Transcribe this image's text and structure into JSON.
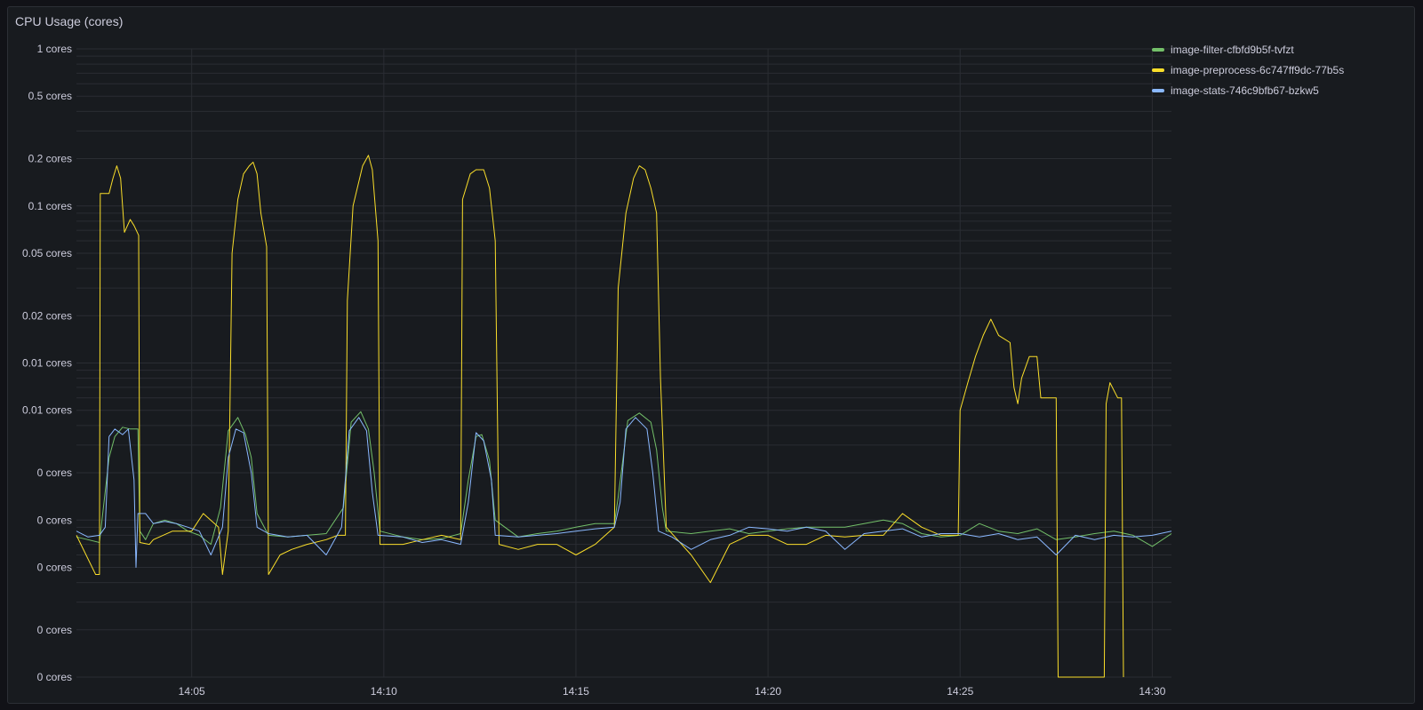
{
  "panel": {
    "title": "CPU Usage (cores)"
  },
  "chart_data": {
    "type": "line",
    "title": "CPU Usage (cores)",
    "y_scale": "log",
    "grid": true,
    "legend_position": "right",
    "y_tick_labels": [
      {
        "value": 1,
        "label": "1 cores"
      },
      {
        "value": 0.5,
        "label": "0.5 cores"
      },
      {
        "value": 0.2,
        "label": "0.2 cores"
      },
      {
        "value": 0.1,
        "label": "0.1 cores"
      },
      {
        "value": 0.05,
        "label": "0.05 cores"
      },
      {
        "value": 0.02,
        "label": "0.02 cores"
      },
      {
        "value": 0.01,
        "label": "0.01 cores"
      },
      {
        "value": 0.005,
        "label": "0.01 cores"
      },
      {
        "value": 0.002,
        "label": "0 cores"
      },
      {
        "value": 0.001,
        "label": "0 cores"
      },
      {
        "value": 0.0005,
        "label": "0 cores"
      },
      {
        "value": 0.0002,
        "label": "0 cores"
      },
      {
        "value": 0.0001,
        "label": "0 cores"
      }
    ],
    "x_tick_labels": [
      {
        "minute": 5,
        "label": "14:05"
      },
      {
        "minute": 10,
        "label": "14:10"
      },
      {
        "minute": 15,
        "label": "14:15"
      },
      {
        "minute": 20,
        "label": "14:20"
      },
      {
        "minute": 25,
        "label": "14:25"
      },
      {
        "minute": 30,
        "label": "14:30"
      }
    ],
    "x_range_minutes": [
      2,
      30.5
    ],
    "y_range": [
      0.0001,
      1
    ],
    "series": [
      {
        "name": "image-filter-cfbfd9b5f-tvfzt",
        "color": "#73bf69",
        "points": [
          [
            2.0,
            0.00078
          ],
          [
            2.3,
            0.00075
          ],
          [
            2.6,
            0.00072
          ],
          [
            2.85,
            0.0025
          ],
          [
            3.0,
            0.0034
          ],
          [
            3.2,
            0.0039
          ],
          [
            3.4,
            0.0038
          ],
          [
            3.6,
            0.0038
          ],
          [
            3.65,
            0.00085
          ],
          [
            3.8,
            0.00075
          ],
          [
            4.0,
            0.00095
          ],
          [
            4.3,
            0.001
          ],
          [
            4.6,
            0.00095
          ],
          [
            4.9,
            0.00085
          ],
          [
            5.2,
            0.0008
          ],
          [
            5.5,
            0.0007
          ],
          [
            5.75,
            0.0012
          ],
          [
            5.95,
            0.0037
          ],
          [
            6.2,
            0.0045
          ],
          [
            6.4,
            0.0035
          ],
          [
            6.55,
            0.0025
          ],
          [
            6.7,
            0.0011
          ],
          [
            7.0,
            0.0008
          ],
          [
            7.5,
            0.00078
          ],
          [
            8.0,
            0.0008
          ],
          [
            8.5,
            0.00082
          ],
          [
            8.95,
            0.0012
          ],
          [
            9.15,
            0.0042
          ],
          [
            9.4,
            0.0049
          ],
          [
            9.6,
            0.0038
          ],
          [
            9.75,
            0.002
          ],
          [
            9.9,
            0.00085
          ],
          [
            10.5,
            0.00078
          ],
          [
            11.0,
            0.00075
          ],
          [
            11.5,
            0.00076
          ],
          [
            12.0,
            0.00082
          ],
          [
            12.2,
            0.0018
          ],
          [
            12.4,
            0.0034
          ],
          [
            12.55,
            0.0035
          ],
          [
            12.75,
            0.0024
          ],
          [
            12.9,
            0.001
          ],
          [
            13.5,
            0.00078
          ],
          [
            14.0,
            0.00082
          ],
          [
            14.5,
            0.00085
          ],
          [
            15.0,
            0.0009
          ],
          [
            15.5,
            0.00095
          ],
          [
            16.0,
            0.00095
          ],
          [
            16.1,
            0.0014
          ],
          [
            16.35,
            0.0043
          ],
          [
            16.65,
            0.0048
          ],
          [
            16.95,
            0.0042
          ],
          [
            17.1,
            0.0028
          ],
          [
            17.25,
            0.0012
          ],
          [
            17.35,
            0.00085
          ],
          [
            18.0,
            0.00082
          ],
          [
            18.5,
            0.00085
          ],
          [
            19.0,
            0.00088
          ],
          [
            19.5,
            0.00082
          ],
          [
            20.0,
            0.00085
          ],
          [
            20.5,
            0.00088
          ],
          [
            21.0,
            0.0009
          ],
          [
            21.5,
            0.0009
          ],
          [
            22.0,
            0.0009
          ],
          [
            22.5,
            0.00095
          ],
          [
            23.0,
            0.001
          ],
          [
            23.5,
            0.00095
          ],
          [
            24.0,
            0.00082
          ],
          [
            24.5,
            0.00078
          ],
          [
            25.0,
            0.0008
          ],
          [
            25.5,
            0.00095
          ],
          [
            26.0,
            0.00085
          ],
          [
            26.5,
            0.00082
          ],
          [
            27.0,
            0.00088
          ],
          [
            27.5,
            0.00075
          ],
          [
            28.0,
            0.00078
          ],
          [
            28.5,
            0.00082
          ],
          [
            29.0,
            0.00085
          ],
          [
            29.5,
            0.0008
          ],
          [
            30.0,
            0.00068
          ],
          [
            30.5,
            0.00082
          ]
        ]
      },
      {
        "name": "image-preprocess-6c747ff9dc-77b5s",
        "color": "#fade2a",
        "points": [
          [
            2.0,
            0.0008
          ],
          [
            2.5,
            0.00045
          ],
          [
            2.6,
            0.00045
          ],
          [
            2.62,
            0.12
          ],
          [
            2.85,
            0.12
          ],
          [
            2.95,
            0.15
          ],
          [
            3.05,
            0.18
          ],
          [
            3.15,
            0.15
          ],
          [
            3.25,
            0.068
          ],
          [
            3.4,
            0.082
          ],
          [
            3.5,
            0.075
          ],
          [
            3.62,
            0.065
          ],
          [
            3.65,
            0.00072
          ],
          [
            3.9,
            0.0007
          ],
          [
            4.0,
            0.00075
          ],
          [
            4.5,
            0.00085
          ],
          [
            5.0,
            0.00085
          ],
          [
            5.3,
            0.0011
          ],
          [
            5.7,
            0.0009
          ],
          [
            5.8,
            0.00045
          ],
          [
            5.95,
            0.00085
          ],
          [
            6.05,
            0.05
          ],
          [
            6.2,
            0.11
          ],
          [
            6.35,
            0.16
          ],
          [
            6.5,
            0.18
          ],
          [
            6.6,
            0.19
          ],
          [
            6.7,
            0.16
          ],
          [
            6.8,
            0.09
          ],
          [
            6.95,
            0.055
          ],
          [
            7.0,
            0.00045
          ],
          [
            7.3,
            0.0006
          ],
          [
            7.6,
            0.00065
          ],
          [
            8.0,
            0.0007
          ],
          [
            8.5,
            0.00075
          ],
          [
            8.8,
            0.0008
          ],
          [
            9.0,
            0.0008
          ],
          [
            9.05,
            0.025
          ],
          [
            9.2,
            0.1
          ],
          [
            9.45,
            0.18
          ],
          [
            9.6,
            0.21
          ],
          [
            9.7,
            0.17
          ],
          [
            9.85,
            0.06
          ],
          [
            9.9,
            0.0007
          ],
          [
            10.5,
            0.0007
          ],
          [
            11.0,
            0.00075
          ],
          [
            11.5,
            0.0008
          ],
          [
            12.0,
            0.00075
          ],
          [
            12.05,
            0.11
          ],
          [
            12.25,
            0.16
          ],
          [
            12.4,
            0.17
          ],
          [
            12.6,
            0.17
          ],
          [
            12.75,
            0.13
          ],
          [
            12.9,
            0.06
          ],
          [
            13.0,
            0.0007
          ],
          [
            13.5,
            0.00065
          ],
          [
            14.0,
            0.0007
          ],
          [
            14.5,
            0.0007
          ],
          [
            15.0,
            0.0006
          ],
          [
            15.5,
            0.0007
          ],
          [
            16.0,
            0.0009
          ],
          [
            16.1,
            0.03
          ],
          [
            16.3,
            0.09
          ],
          [
            16.5,
            0.15
          ],
          [
            16.65,
            0.18
          ],
          [
            16.8,
            0.17
          ],
          [
            16.95,
            0.13
          ],
          [
            17.1,
            0.09
          ],
          [
            17.2,
            0.008
          ],
          [
            17.35,
            0.0009
          ],
          [
            18.0,
            0.0006
          ],
          [
            18.5,
            0.0004
          ],
          [
            19.0,
            0.0007
          ],
          [
            19.5,
            0.0008
          ],
          [
            20.0,
            0.0008
          ],
          [
            20.5,
            0.0007
          ],
          [
            21.0,
            0.0007
          ],
          [
            21.5,
            0.0008
          ],
          [
            22.0,
            0.00078
          ],
          [
            22.5,
            0.0008
          ],
          [
            23.0,
            0.0008
          ],
          [
            23.5,
            0.0011
          ],
          [
            24.0,
            0.0009
          ],
          [
            24.5,
            0.0008
          ],
          [
            24.95,
            0.0008
          ],
          [
            25.0,
            0.005
          ],
          [
            25.2,
            0.0075
          ],
          [
            25.4,
            0.011
          ],
          [
            25.6,
            0.015
          ],
          [
            25.8,
            0.019
          ],
          [
            26.0,
            0.015
          ],
          [
            26.3,
            0.0135
          ],
          [
            26.4,
            0.007
          ],
          [
            26.5,
            0.0055
          ],
          [
            26.6,
            0.008
          ],
          [
            26.8,
            0.011
          ],
          [
            27.0,
            0.011
          ],
          [
            27.1,
            0.006
          ],
          [
            27.5,
            0.006
          ],
          [
            27.55,
            0.0001
          ],
          [
            28.75,
            0.0001
          ],
          [
            28.8,
            0.0055
          ],
          [
            28.9,
            0.0075
          ],
          [
            29.1,
            0.006
          ],
          [
            29.2,
            0.006
          ],
          [
            29.25,
            0.0001
          ]
        ]
      },
      {
        "name": "image-stats-746c9bfb67-bzkw5",
        "color": "#8ab8ff",
        "points": [
          [
            2.0,
            0.00085
          ],
          [
            2.3,
            0.00078
          ],
          [
            2.6,
            0.0008
          ],
          [
            2.75,
            0.0009
          ],
          [
            2.85,
            0.0034
          ],
          [
            3.0,
            0.0038
          ],
          [
            3.2,
            0.0035
          ],
          [
            3.35,
            0.0038
          ],
          [
            3.5,
            0.0018
          ],
          [
            3.55,
            0.0005
          ],
          [
            3.6,
            0.0011
          ],
          [
            3.8,
            0.0011
          ],
          [
            4.0,
            0.00095
          ],
          [
            4.3,
            0.00098
          ],
          [
            4.6,
            0.00095
          ],
          [
            4.9,
            0.0009
          ],
          [
            5.2,
            0.00085
          ],
          [
            5.5,
            0.0006
          ],
          [
            5.8,
            0.0009
          ],
          [
            5.95,
            0.0025
          ],
          [
            6.15,
            0.0038
          ],
          [
            6.35,
            0.0036
          ],
          [
            6.55,
            0.002
          ],
          [
            6.7,
            0.0009
          ],
          [
            7.0,
            0.00082
          ],
          [
            7.5,
            0.00078
          ],
          [
            8.0,
            0.0008
          ],
          [
            8.5,
            0.0006
          ],
          [
            8.9,
            0.0009
          ],
          [
            9.1,
            0.0037
          ],
          [
            9.35,
            0.0045
          ],
          [
            9.55,
            0.0037
          ],
          [
            9.7,
            0.0015
          ],
          [
            9.85,
            0.0008
          ],
          [
            10.5,
            0.00078
          ],
          [
            11.0,
            0.00072
          ],
          [
            11.5,
            0.00075
          ],
          [
            12.0,
            0.0007
          ],
          [
            12.2,
            0.0013
          ],
          [
            12.4,
            0.0036
          ],
          [
            12.6,
            0.0032
          ],
          [
            12.8,
            0.0018
          ],
          [
            12.9,
            0.0008
          ],
          [
            13.5,
            0.00078
          ],
          [
            14.0,
            0.0008
          ],
          [
            14.5,
            0.00082
          ],
          [
            15.0,
            0.00085
          ],
          [
            15.5,
            0.00088
          ],
          [
            16.0,
            0.0009
          ],
          [
            16.15,
            0.0013
          ],
          [
            16.3,
            0.0038
          ],
          [
            16.55,
            0.0045
          ],
          [
            16.85,
            0.0038
          ],
          [
            17.0,
            0.002
          ],
          [
            17.15,
            0.00085
          ],
          [
            17.5,
            0.00078
          ],
          [
            18.0,
            0.00065
          ],
          [
            18.5,
            0.00075
          ],
          [
            19.0,
            0.0008
          ],
          [
            19.5,
            0.0009
          ],
          [
            20.0,
            0.00088
          ],
          [
            20.5,
            0.00085
          ],
          [
            21.0,
            0.0009
          ],
          [
            21.5,
            0.00085
          ],
          [
            22.0,
            0.00065
          ],
          [
            22.5,
            0.00082
          ],
          [
            23.0,
            0.00085
          ],
          [
            23.5,
            0.00088
          ],
          [
            24.0,
            0.00078
          ],
          [
            24.5,
            0.00082
          ],
          [
            25.0,
            0.00082
          ],
          [
            25.5,
            0.00078
          ],
          [
            26.0,
            0.00082
          ],
          [
            26.5,
            0.00075
          ],
          [
            27.0,
            0.00078
          ],
          [
            27.5,
            0.0006
          ],
          [
            28.0,
            0.0008
          ],
          [
            28.5,
            0.00075
          ],
          [
            29.0,
            0.0008
          ],
          [
            29.5,
            0.00078
          ],
          [
            30.0,
            0.0008
          ],
          [
            30.5,
            0.00085
          ]
        ]
      }
    ]
  }
}
